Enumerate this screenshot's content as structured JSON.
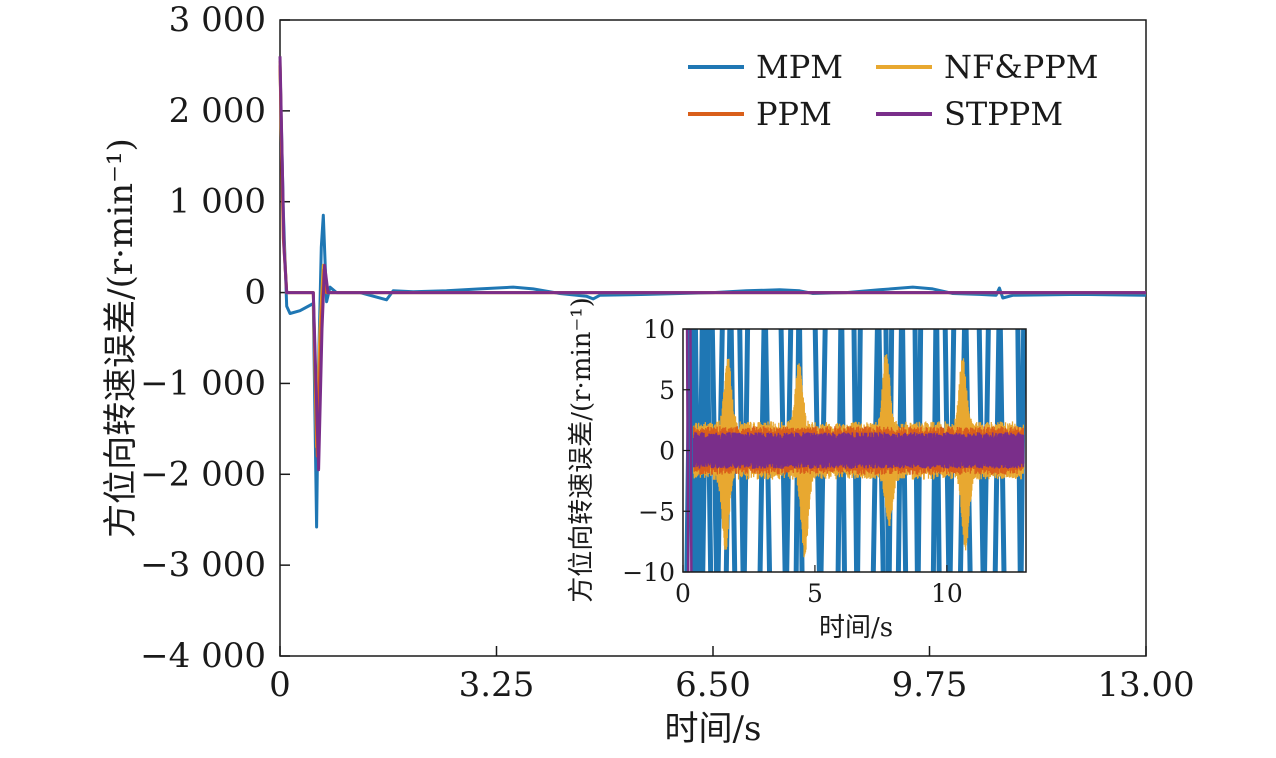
{
  "chart_data": [
    {
      "id": "main",
      "type": "line",
      "xlabel": "时间/s",
      "ylabel": "方位向转速误差/(r·min⁻¹)",
      "xlim": [
        0,
        13
      ],
      "ylim": [
        -4000,
        3000
      ],
      "xticks": [
        0,
        3.25,
        6.5,
        9.75,
        13
      ],
      "xtick_labels": [
        "0",
        "3.25",
        "6.50",
        "9.75",
        "13.00"
      ],
      "yticks": [
        3000,
        2000,
        1000,
        0,
        -1000,
        -2000,
        -3000,
        -4000
      ],
      "ytick_labels": [
        "3 000",
        "2 000",
        "1 000",
        "0",
        "−1 000",
        "−2 000",
        "−3 000",
        "−4 000"
      ],
      "legend_position": "top-right",
      "legend": [
        "MPM",
        "NF&PPM",
        "PPM",
        "STPPM"
      ],
      "series": [
        {
          "name": "MPM",
          "color": "#1f77b4",
          "points": [
            [
              0,
              2500
            ],
            [
              0.05,
              900
            ],
            [
              0.1,
              -150
            ],
            [
              0.15,
              -230
            ],
            [
              0.3,
              -200
            ],
            [
              0.5,
              -120
            ],
            [
              0.55,
              -2580
            ],
            [
              0.58,
              -800
            ],
            [
              0.62,
              500
            ],
            [
              0.65,
              850
            ],
            [
              0.7,
              -100
            ],
            [
              0.75,
              60
            ],
            [
              0.85,
              0
            ],
            [
              1.2,
              0
            ],
            [
              1.6,
              -80
            ],
            [
              1.7,
              20
            ],
            [
              2.0,
              10
            ],
            [
              2.5,
              20
            ],
            [
              3.0,
              40
            ],
            [
              3.5,
              60
            ],
            [
              3.8,
              40
            ],
            [
              4.2,
              -10
            ],
            [
              4.6,
              -40
            ],
            [
              4.7,
              -70
            ],
            [
              4.8,
              -30
            ],
            [
              5.5,
              -20
            ],
            [
              6.0,
              -10
            ],
            [
              6.5,
              0
            ],
            [
              7.0,
              20
            ],
            [
              7.5,
              30
            ],
            [
              7.8,
              20
            ],
            [
              8.0,
              -10
            ],
            [
              8.5,
              0
            ],
            [
              9.0,
              30
            ],
            [
              9.5,
              60
            ],
            [
              9.8,
              40
            ],
            [
              10.1,
              -10
            ],
            [
              10.5,
              -20
            ],
            [
              10.75,
              -30
            ],
            [
              10.8,
              50
            ],
            [
              10.85,
              -60
            ],
            [
              11.0,
              -30
            ],
            [
              12.0,
              -20
            ],
            [
              13.0,
              -30
            ]
          ]
        },
        {
          "name": "NF&PPM",
          "color": "#e8a830",
          "points": [
            [
              0,
              2550
            ],
            [
              0.05,
              700
            ],
            [
              0.1,
              0
            ],
            [
              0.5,
              0
            ],
            [
              0.55,
              -1700
            ],
            [
              0.6,
              -400
            ],
            [
              0.65,
              300
            ],
            [
              0.7,
              0
            ],
            [
              13.0,
              0
            ]
          ]
        },
        {
          "name": "PPM",
          "color": "#d95f1a",
          "points": [
            [
              0,
              2500
            ],
            [
              0.05,
              600
            ],
            [
              0.1,
              0
            ],
            [
              0.5,
              0
            ],
            [
              0.56,
              -1800
            ],
            [
              0.62,
              -300
            ],
            [
              0.66,
              250
            ],
            [
              0.7,
              0
            ],
            [
              13.0,
              0
            ]
          ]
        },
        {
          "name": "STPPM",
          "color": "#7a2e8a",
          "points": [
            [
              0,
              2600
            ],
            [
              0.06,
              500
            ],
            [
              0.1,
              0
            ],
            [
              0.5,
              0
            ],
            [
              0.58,
              -1950
            ],
            [
              0.63,
              -400
            ],
            [
              0.67,
              300
            ],
            [
              0.72,
              0
            ],
            [
              13.0,
              0
            ]
          ]
        }
      ]
    },
    {
      "id": "inset",
      "type": "line",
      "xlabel": "时间/s",
      "ylabel": "方位向转速误差/(r·min⁻¹)",
      "xlim": [
        0,
        13
      ],
      "ylim": [
        -10,
        10
      ],
      "xticks": [
        0,
        5,
        10
      ],
      "xtick_labels": [
        "0",
        "5",
        "10"
      ],
      "yticks": [
        10,
        5,
        0,
        -5,
        -10
      ],
      "ytick_labels": [
        "10",
        "5",
        "0",
        "−5",
        "−10"
      ],
      "series": [
        {
          "name": "MPM",
          "color": "#1f77b4",
          "crossings": [
            0.3,
            0.6,
            0.9,
            1.3,
            1.8,
            2.3,
            3.1,
            3.9,
            4.4,
            5.2,
            6.0,
            6.6,
            7.4,
            7.8,
            8.3,
            8.9,
            9.6,
            10.1,
            10.7,
            11.4,
            12.0,
            12.8
          ]
        },
        {
          "name": "NF&PPM",
          "color": "#e8a830",
          "band": 2.4,
          "bumps": [
            [
              1.7,
              5.5
            ],
            [
              4.4,
              5.2
            ],
            [
              7.7,
              6.0
            ],
            [
              10.6,
              5.5
            ]
          ],
          "dips": [
            [
              1.6,
              -6
            ],
            [
              4.6,
              -6.5
            ],
            [
              7.8,
              -4
            ],
            [
              10.7,
              -6
            ]
          ]
        },
        {
          "name": "PPM",
          "color": "#d95f1a",
          "band": 2.0
        },
        {
          "name": "STPPM",
          "color": "#7a2e8a",
          "band": 1.5
        }
      ]
    }
  ]
}
